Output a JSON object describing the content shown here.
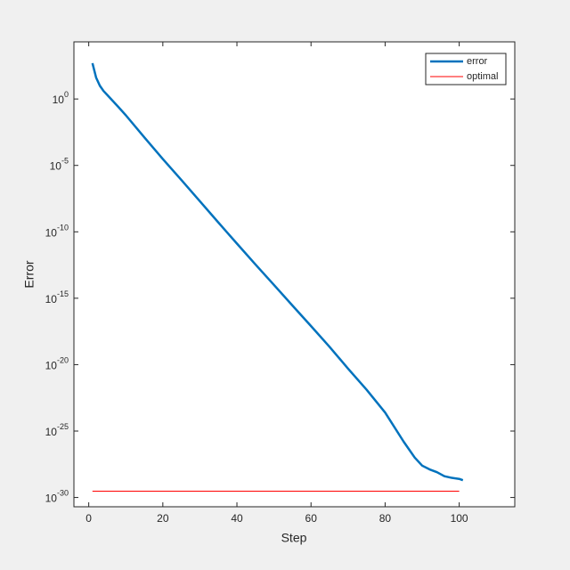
{
  "chart_data": {
    "type": "line",
    "x_label": "Step",
    "y_label": "Error",
    "log_y": true,
    "legend_corner": "top-right",
    "box": true,
    "xlim": [
      -4,
      115
    ],
    "xticks": [
      0,
      20,
      40,
      60,
      80,
      100
    ],
    "ylim": [
      2e-31,
      20000
    ],
    "yticks": [
      {
        "value": 1e-30,
        "label": "10",
        "exponent": "-30"
      },
      {
        "value": 1e-25,
        "label": "10",
        "exponent": "-25"
      },
      {
        "value": 1e-20,
        "label": "10",
        "exponent": "-20"
      },
      {
        "value": 1e-15,
        "label": "10",
        "exponent": "-15"
      },
      {
        "value": 1e-10,
        "label": "10",
        "exponent": "-10"
      },
      {
        "value": 1e-05,
        "label": "10",
        "exponent": "-5"
      },
      {
        "value": 1,
        "label": "10",
        "exponent": "0"
      }
    ],
    "series": [
      {
        "name": "error",
        "color": "#0072bd",
        "width": 2.5,
        "x": [
          1,
          2,
          3,
          4,
          5,
          6,
          8,
          10,
          15,
          20,
          25,
          30,
          35,
          40,
          45,
          50,
          55,
          60,
          65,
          70,
          75,
          80,
          85,
          88,
          90,
          92,
          94,
          96,
          98,
          100,
          101
        ],
        "values": [
          500,
          40,
          10,
          4,
          2,
          1,
          0.25,
          0.06,
          0.0013,
          3e-05,
          8e-07,
          2e-08,
          5e-10,
          1.3e-11,
          3.5e-13,
          1e-14,
          2.8e-16,
          8e-18,
          2.2e-19,
          5e-21,
          1.3e-22,
          2.5e-24,
          1.6e-26,
          1e-27,
          2.5e-28,
          1.3e-28,
          8e-29,
          4e-29,
          3e-29,
          2.5e-29,
          2e-29
        ]
      },
      {
        "name": "optimal",
        "color": "#ff0000",
        "width": 1,
        "x": [
          1,
          100
        ],
        "values": [
          3e-30,
          3e-30
        ]
      }
    ]
  }
}
